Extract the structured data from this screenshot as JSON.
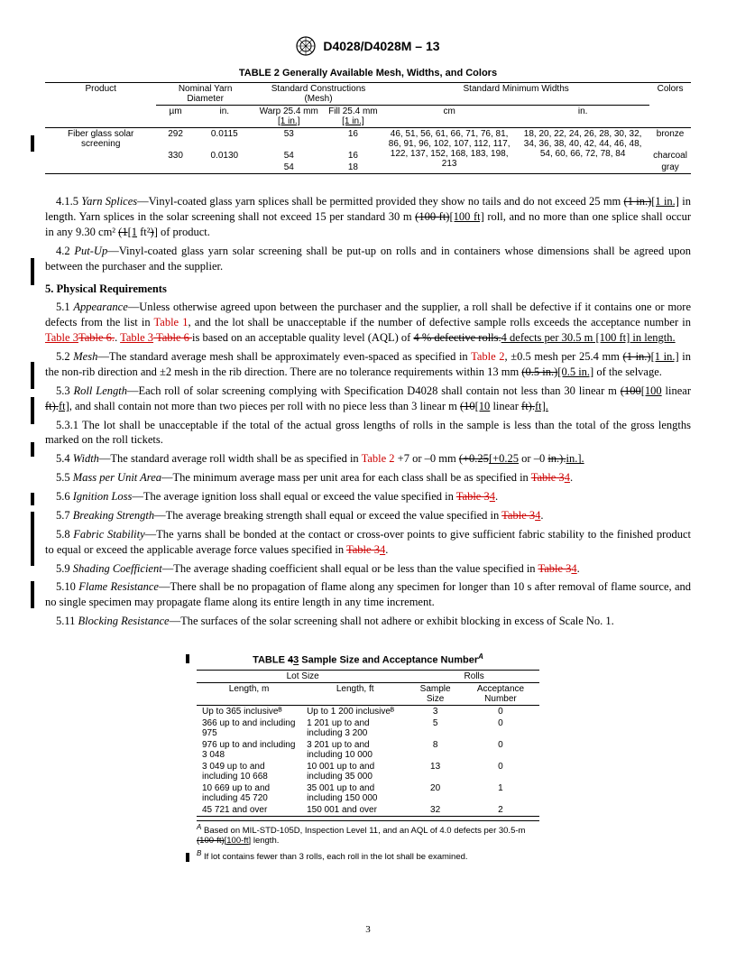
{
  "header": {
    "designation": "D4028/D4028M – 13"
  },
  "table2": {
    "title": "TABLE 2 Generally Available Mesh, Widths, and Colors",
    "col_product": "Product",
    "col_nominal": "Nominal Yarn Diameter",
    "col_constructions": "Standard Constructions (Mesh)",
    "col_widths": "Standard Minimum Widths",
    "col_colors": "Colors",
    "sub_um": "µm",
    "sub_in": "in.",
    "sub_warp": "Warp 25.4 mm",
    "sub_warp2": "[1 in.]",
    "sub_fill": "Fill 25.4 mm",
    "sub_fill2": "[1 in.]",
    "sub_cm": "cm",
    "sub_in2": "in.",
    "product": "Fiber glass solar screening",
    "um1": "292",
    "in1": "0.0115",
    "warp1": "53",
    "fill1": "16",
    "um2": "330",
    "in2": "0.0130",
    "warp2": "54",
    "fill2": "16",
    "warp3": "54",
    "fill3": "18",
    "cm_vals": "46, 51, 56, 61, 66, 71, 76, 81, 86, 91, 96, 102, 107, 112, 117, 122, 137, 152, 168, 183, 198, 213",
    "in_vals": "18, 20, 22, 24, 26, 28, 30, 32, 34, 36, 38, 40, 42, 44, 46, 48, 54, 60, 66, 72, 78, 84",
    "color1": "bronze",
    "color2": "charcoal",
    "color3": "gray"
  },
  "body": {
    "p415_a": "4.1.5 ",
    "p415_b": "Yarn Splices",
    "p415_c": "—Vinyl-coated glass yarn splices shall be permitted provided they show no tails and do not exceed 25 mm ",
    "p415_strike1": "(1 in.)",
    "p415_ul1": "[1 in.]",
    "p415_d": " in length. Yarn splices in the solar screening shall not exceed 15 per standard 30 m ",
    "p415_strike2": "(100 ft)",
    "p415_ul2": "[100 ft]",
    "p415_e": " roll, and no more than one splice shall occur in any 9.30 cm² ",
    "p415_strike3": "(1",
    "p415_ul3": "[1",
    "p415_f": " ft²",
    "p415_strike4": ")",
    "p415_ul4": "]",
    "p415_g": " of product.",
    "p42_a": "4.2 ",
    "p42_b": "Put-Up",
    "p42_c": "—Vinyl-coated glass yarn solar screening shall be put-up on rolls and in containers whose dimensions shall be agreed upon between the purchaser and the supplier.",
    "s5": "5. Physical Requirements",
    "p51_a": "5.1 ",
    "p51_b": "Appearance",
    "p51_c": "—Unless otherwise agreed upon between the purchaser and the supplier, a roll shall be defective if it contains one or more defects from the list in ",
    "p51_t1": "Table 1",
    "p51_d": ", and the lot shall be unacceptable if the number of defective sample rolls exceeds the acceptance number in ",
    "p51_t3a": "Table 3",
    "p51_strike1": "Table 6.",
    "p51_e": ". ",
    "p51_t3b": "Table 3",
    "p51_strike2": " Table 6 ",
    "p51_f": "is based on an acceptable quality level (AQL) of ",
    "p51_strike3": "4 % defective rolls.",
    "p51_ul1": "4 defects per 30.5 m [100 ft] in length.",
    "p52_a": "5.2 ",
    "p52_b": "Mesh",
    "p52_c": "—The standard average mesh shall be approximately even-spaced as specified in ",
    "p52_t2": "Table 2",
    "p52_d": ", ±0.5 mesh per 25.4 mm ",
    "p52_strike1": "(1 in.)",
    "p52_ul1": "[1 in.]",
    "p52_e": " in the non-rib direction and ±2 mesh in the rib direction. There are no tolerance requirements within 13 mm ",
    "p52_strike2": "(0.5 in.)",
    "p52_ul2": "[0.5 in.]",
    "p52_f": " of the selvage.",
    "p53_a": "5.3 ",
    "p53_b": "Roll Length",
    "p53_c": "—Each roll of solar screening complying with Specification D4028 shall contain not less than 30 linear m ",
    "p53_strike1": "(100",
    "p53_ul1": "[100",
    "p53_d": " linear ",
    "p53_strike2": "ft).",
    "p53_ul2": "ft],",
    "p53_e": " and shall contain not more than two pieces per roll with no piece less than 3 linear m ",
    "p53_strike3": "(10",
    "p53_ul3": "[10",
    "p53_f": " linear ",
    "p53_strike4": "ft).",
    "p53_ul4": "ft].",
    "p531": "5.3.1 The lot shall be unacceptable if the total of the actual gross lengths of rolls in the sample is less than the total of the gross lengths marked on the roll tickets.",
    "p54_a": "5.4 ",
    "p54_b": "Width",
    "p54_c": "—The standard average roll width shall be as specified in ",
    "p54_t2": "Table 2",
    "p54_d": " +7 or –0 mm ",
    "p54_strike1": "(+0.25",
    "p54_ul1": "[+0.25",
    "p54_e": " or –0 ",
    "p54_strike2": "in.).",
    "p54_ul2": "in.].",
    "p55_a": "5.5 ",
    "p55_b": "Mass per Unit Area",
    "p55_c": "—The minimum average mass per unit area for each class shall be as specified in ",
    "p55_t": "Table 3",
    "p55_u": "4",
    "p55_d": ".",
    "p56_a": "5.6 ",
    "p56_b": "Ignition Loss",
    "p56_c": "—The average ignition loss shall equal or exceed the value specified in ",
    "p56_t": "Table 3",
    "p56_u": "4",
    "p56_d": ".",
    "p57_a": "5.7 ",
    "p57_b": "Breaking Strength",
    "p57_c": "—The average breaking strength shall equal or exceed the value specified in ",
    "p57_t": "Table 3",
    "p57_u": "4",
    "p57_d": ".",
    "p58_a": "5.8 ",
    "p58_b": "Fabric Stability",
    "p58_c": "—The yarns shall be bonded at the contact or cross-over points to give sufficient fabric stability to the finished product to equal or exceed the applicable average force values specified in ",
    "p58_t": "Table 3",
    "p58_u": "4",
    "p58_d": ".",
    "p59_a": "5.9 ",
    "p59_b": "Shading Coefficient",
    "p59_c": "—The average shading coefficient shall equal or be less than the value specified in ",
    "p59_t": "Table 3",
    "p59_u": "4",
    "p59_d": ".",
    "p510_a": "5.10 ",
    "p510_b": "Flame Resistance",
    "p510_c": "—There shall be no propagation of flame along any specimen for longer than 10 s after removal of flame source, and no single specimen may propagate flame along its entire length in any time increment.",
    "p511_a": "5.11 ",
    "p511_b": "Blocking Resistance",
    "p511_c": "—The surfaces of the solar screening shall not adhere or exhibit blocking in excess of Scale No. 1."
  },
  "table3": {
    "title_a": "TABLE ",
    "title_strike": "4",
    "title_ul": "3",
    "title_b": " Sample Size and Acceptance Number",
    "title_sup": "A",
    "h_lot": "Lot Size",
    "h_rolls": "Rolls",
    "h_len_m": "Length, m",
    "h_len_ft": "Length, ft",
    "h_sample": "Sample Size",
    "h_accept": "Acceptance Number",
    "rows": [
      {
        "m": "Up to 365 inclusiveᴮ",
        "ft": "Up to 1 200 inclusiveᴮ",
        "s": "3",
        "a": "0"
      },
      {
        "m": "366 up to and including 975",
        "ft": "1 201 up to and including 3 200",
        "s": "5",
        "a": "0"
      },
      {
        "m": "976 up to and including 3 048",
        "ft": "3 201 up to and including 10 000",
        "s": "8",
        "a": "0"
      },
      {
        "m": "3 049 up to and including 10 668",
        "ft": "10 001 up to and including 35 000",
        "s": "13",
        "a": "0"
      },
      {
        "m": "10 669 up to and including 45 720",
        "ft": "35 001 up to and including 150 000",
        "s": "20",
        "a": "1"
      },
      {
        "m": "45 721 and over",
        "ft": "150 001 and over",
        "s": "32",
        "a": "2"
      }
    ],
    "fn_a_sup": "A",
    "fn_a_1": " Based on MIL-STD-105D, Inspection Level 11, and an AQL of 4.0 defects per 30.5-m ",
    "fn_a_strike": "(100-ft)",
    "fn_a_ul": "[100-ft]",
    "fn_a_2": " length.",
    "fn_b_sup": "B",
    "fn_b": " If lot contains fewer than 3 rolls, each roll in the lot shall be examined."
  },
  "pagenum": "3"
}
